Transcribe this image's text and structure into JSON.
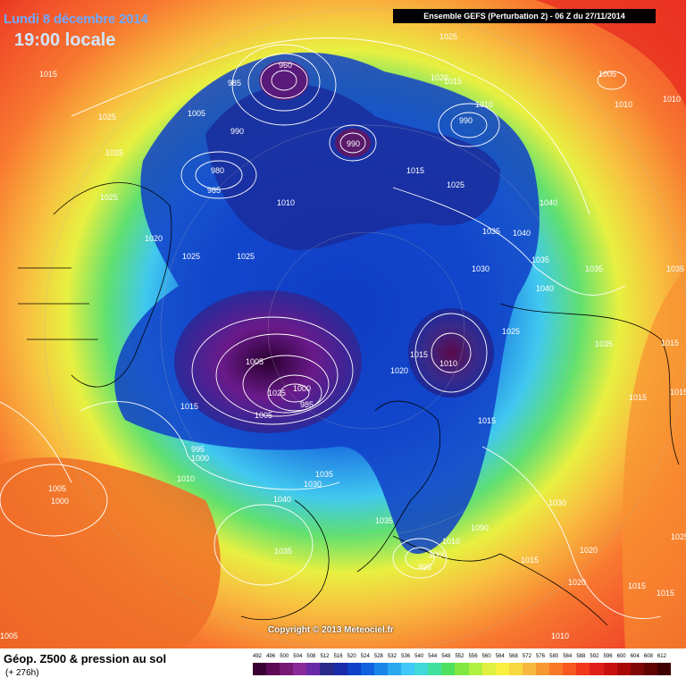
{
  "header": {
    "date": "Lundi 8 décembre 2014",
    "local_time": "19:00 locale",
    "run_info": "Ensemble GEFS (Perturbation 2)  -  06 Z du 27/11/2014"
  },
  "copyright": "Copyright © 2013 Meteociel.fr",
  "legend": {
    "title": "Géop. Z500 & pression au sol",
    "lead": "(+ 276h)",
    "levels": [
      "492",
      "496",
      "500",
      "504",
      "508",
      "512",
      "516",
      "520",
      "524",
      "528",
      "532",
      "536",
      "540",
      "544",
      "548",
      "552",
      "556",
      "560",
      "564",
      "568",
      "572",
      "576",
      "580",
      "584",
      "588",
      "592",
      "596",
      "600",
      "604",
      "608",
      "612"
    ],
    "colors": [
      "#3a0034",
      "#5c0a55",
      "#7a1876",
      "#8a2a9a",
      "#6a2aa8",
      "#2a2a8a",
      "#1a2aa8",
      "#1040c8",
      "#1060e0",
      "#1a86e8",
      "#2aa8f0",
      "#40c8f8",
      "#40d8d8",
      "#40e0a0",
      "#50e060",
      "#80e840",
      "#b0f040",
      "#e0f040",
      "#f8f040",
      "#f8d840",
      "#f8b840",
      "#f89830",
      "#f87828",
      "#f85820",
      "#f03818",
      "#e02018",
      "#c81010",
      "#a80808",
      "#800808",
      "#600404",
      "#400000"
    ]
  },
  "isobar_labels": [
    {
      "t": "1025"
    },
    {
      "t": "1015"
    },
    {
      "t": "1025"
    },
    {
      "t": "1025"
    },
    {
      "t": "1025"
    },
    {
      "t": "1020"
    },
    {
      "t": "1025"
    },
    {
      "t": "1025"
    },
    {
      "t": "960"
    },
    {
      "t": "985"
    },
    {
      "t": "1005"
    },
    {
      "t": "990"
    },
    {
      "t": "980"
    },
    {
      "t": "985"
    },
    {
      "t": "1010"
    },
    {
      "t": "990"
    },
    {
      "t": "1015"
    },
    {
      "t": "1020"
    },
    {
      "t": "1015"
    },
    {
      "t": "1010"
    },
    {
      "t": "990"
    },
    {
      "t": "1025"
    },
    {
      "t": "1005"
    },
    {
      "t": "1010"
    },
    {
      "t": "1040"
    },
    {
      "t": "1035"
    },
    {
      "t": "1040"
    },
    {
      "t": "1035"
    },
    {
      "t": "1035"
    },
    {
      "t": "1040"
    },
    {
      "t": "1030"
    },
    {
      "t": "1025"
    },
    {
      "t": "1035"
    },
    {
      "t": "1015"
    },
    {
      "t": "1015"
    },
    {
      "t": "1010"
    },
    {
      "t": "1020"
    },
    {
      "t": "1015"
    },
    {
      "t": "1005"
    },
    {
      "t": "1025"
    },
    {
      "t": "1000"
    },
    {
      "t": "985"
    },
    {
      "t": "1005"
    },
    {
      "t": "1015"
    },
    {
      "t": "1015"
    },
    {
      "t": "1030"
    },
    {
      "t": "1035"
    },
    {
      "t": "995"
    },
    {
      "t": "1000"
    },
    {
      "t": "1010"
    },
    {
      "t": "1005"
    },
    {
      "t": "1000"
    },
    {
      "t": "1040"
    },
    {
      "t": "1025"
    },
    {
      "t": "1030"
    },
    {
      "t": "1035"
    },
    {
      "t": "1035"
    },
    {
      "t": "1090"
    },
    {
      "t": "1010"
    },
    {
      "t": "1000"
    },
    {
      "t": "995"
    },
    {
      "t": "1015"
    },
    {
      "t": "1020"
    },
    {
      "t": "1020"
    },
    {
      "t": "1015"
    },
    {
      "t": "1015"
    },
    {
      "t": "1010"
    },
    {
      "t": "1005"
    },
    {
      "t": "1010"
    },
    {
      "t": "1035"
    },
    {
      "t": "1015"
    }
  ]
}
